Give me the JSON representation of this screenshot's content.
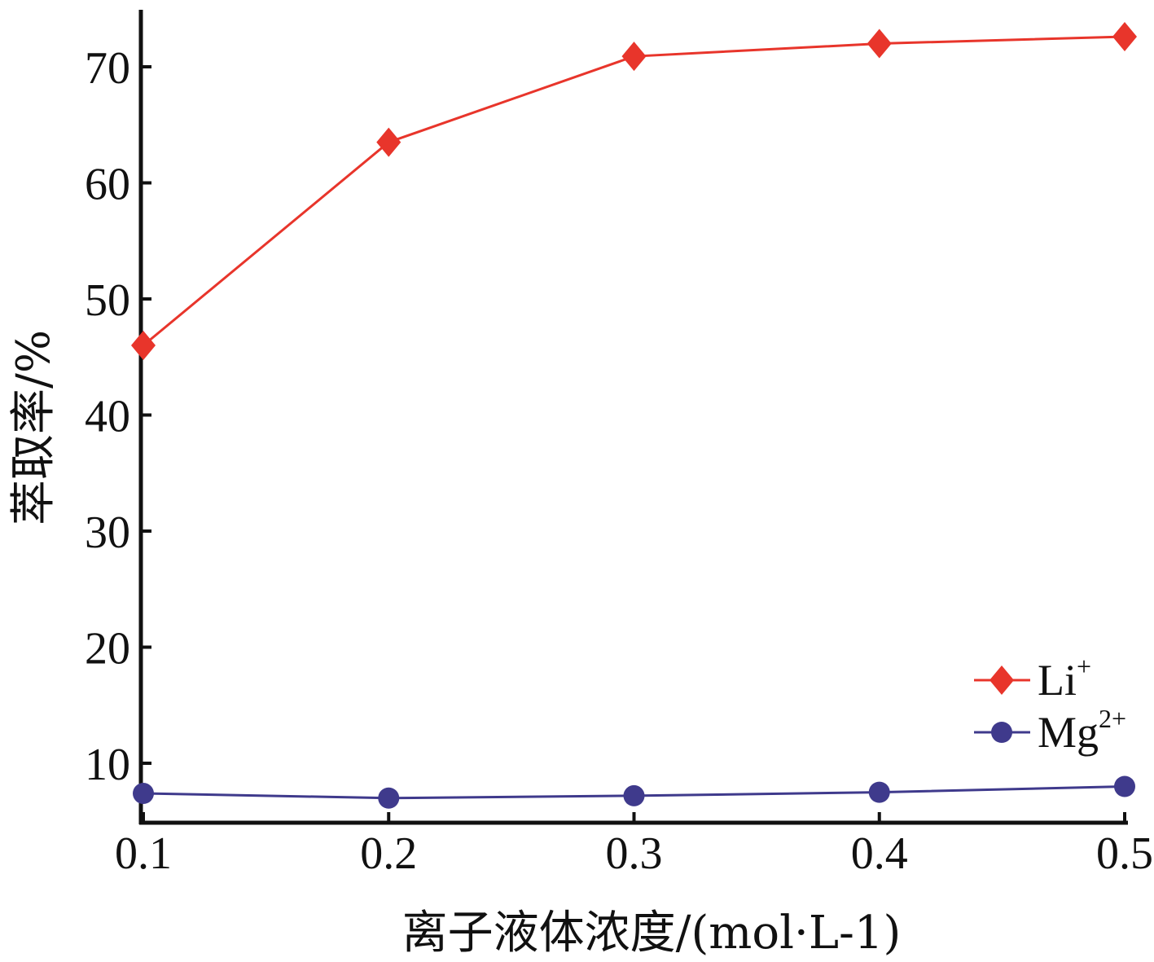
{
  "chart_data": {
    "type": "line",
    "title": "",
    "xlabel": "离子液体浓度/(mol·L-1)",
    "ylabel": "萃取率/%",
    "x": [
      0.1,
      0.2,
      0.3,
      0.4,
      0.5
    ],
    "x_tick_labels": [
      "0.1",
      "0.2",
      "0.3",
      "0.4",
      "0.5"
    ],
    "y_ticks": [
      10,
      20,
      30,
      40,
      50,
      60,
      70
    ],
    "xlim": [
      0.1,
      0.5
    ],
    "ylim": [
      5,
      75
    ],
    "grid": false,
    "legend_position": "bottom-right",
    "series": [
      {
        "name": "Li+",
        "legend_base": "Li",
        "legend_sup": "+",
        "marker": "diamond",
        "color": "#e8352b",
        "values": [
          46.0,
          63.5,
          70.9,
          72.0,
          72.6
        ]
      },
      {
        "name": "Mg2+",
        "legend_base": "Mg",
        "legend_sup": "2+",
        "marker": "circle",
        "color": "#3f3a8c",
        "values": [
          7.4,
          7.0,
          7.2,
          7.5,
          8.0
        ]
      }
    ]
  }
}
